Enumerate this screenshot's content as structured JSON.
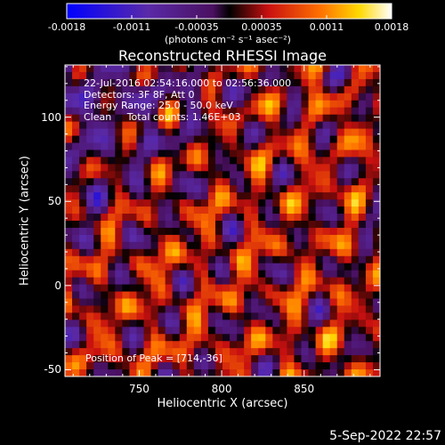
{
  "colorbar": {
    "tick_labels": [
      "-0.0018",
      "-0.0011",
      "-0.00035",
      "0.00035",
      "0.0011",
      "0.0018"
    ],
    "units": "(photons cm⁻² s⁻¹ asec⁻²)"
  },
  "chart_data": {
    "type": "heatmap",
    "title": "Reconstructed RHESSI Image",
    "xlabel": "Heliocentric X (arcsec)",
    "ylabel": "Heliocentric Y (arcsec)",
    "xlim": [
      705,
      896
    ],
    "ylim": [
      -54,
      131
    ],
    "x_ticks": [
      750,
      800,
      850
    ],
    "y_ticks": [
      -50,
      0,
      50,
      100
    ],
    "x_tick_labels": [
      "750",
      "800",
      "850"
    ],
    "y_tick_labels": [
      "-50",
      "0",
      "50",
      "100"
    ],
    "color_range": [
      -0.0018,
      0.0018
    ],
    "colormap": "blue-purple-red-yellow-white",
    "peak": [
      714,
      -36
    ],
    "grid": false
  },
  "info": {
    "line1": "22-Jul-2016 02:54:16.000 to 02:56:36.000",
    "line2": "Detectors: 3F 8F, Att 0",
    "line3": "Energy Range: 25.0 - 50.0 keV",
    "line4": "Clean     Total counts: 1.46E+03"
  },
  "peak_text": "Position of Peak = [714,-36]",
  "footer": "5-Sep-2022 22:57"
}
